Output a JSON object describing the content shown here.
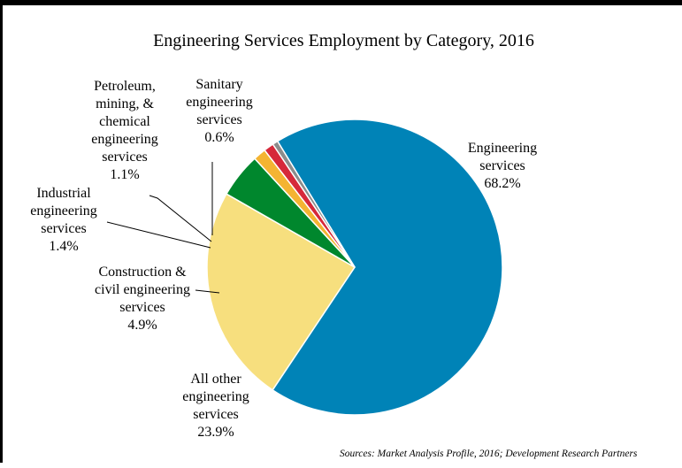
{
  "chart_data": {
    "type": "pie",
    "title": "Engineering Services Employment by Category, 2016",
    "slices": [
      {
        "name": "Engineering services",
        "label_lines": [
          "Engineering",
          "services"
        ],
        "value": 68.2,
        "value_label": "68.2%",
        "color": "#0083b7"
      },
      {
        "name": "All other engineering services",
        "label_lines": [
          "All other",
          "engineering",
          "services"
        ],
        "value": 23.9,
        "value_label": "23.9%",
        "color": "#f7df7e"
      },
      {
        "name": "Construction & civil engineering services",
        "label_lines": [
          "Construction &",
          "civil engineering",
          "services"
        ],
        "value": 4.9,
        "value_label": "4.9%",
        "color": "#00872d"
      },
      {
        "name": "Industrial engineering services",
        "label_lines": [
          "Industrial",
          "engineering",
          "services"
        ],
        "value": 1.4,
        "value_label": "1.4%",
        "color": "#f4b432"
      },
      {
        "name": "Petroleum, mining, & chemical engineering services",
        "label_lines": [
          "Petroleum,",
          "mining, &",
          "chemical",
          "engineering",
          "services"
        ],
        "value": 1.1,
        "value_label": "1.1%",
        "color": "#d6283a"
      },
      {
        "name": "Sanitary engineering services",
        "label_lines": [
          "Sanitary",
          "engineering",
          "services"
        ],
        "value": 0.6,
        "value_label": "0.6%",
        "color": "#8c8c8c"
      }
    ],
    "source": "Sources: Market Analysis Profile, 2016; Development Research Partners"
  }
}
